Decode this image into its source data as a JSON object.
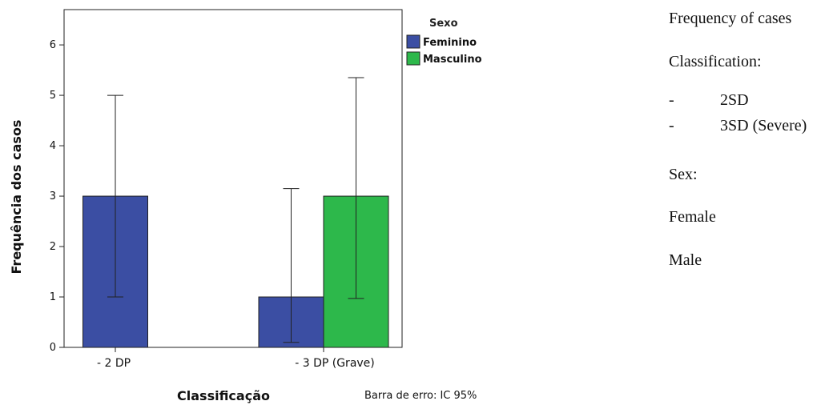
{
  "chart_data": {
    "type": "bar",
    "categories": [
      "- 2 DP",
      "- 3 DP (Grave)"
    ],
    "series": [
      {
        "name": "Feminino",
        "color": "#3b4ea3",
        "values": [
          3,
          1
        ],
        "ci_low": [
          1,
          0.1
        ],
        "ci_high": [
          5,
          3.15
        ]
      },
      {
        "name": "Masculino",
        "color": "#2db84b",
        "values": [
          null,
          3
        ],
        "ci_low": [
          null,
          0.97
        ],
        "ci_high": [
          null,
          5.35
        ]
      }
    ],
    "ylabel": "Frequência dos casos",
    "xlabel": "Classificação",
    "ylim": [
      0,
      6.7
    ],
    "yticks": [
      0,
      1,
      2,
      3,
      4,
      5,
      6
    ],
    "legend_title": "Sexo",
    "legend_position": "top-right",
    "error_bar_note": "Barra de erro: IC 95%",
    "grid": false
  },
  "translation": {
    "title": "Frequency of cases",
    "classification": "Classification:",
    "dash": "-",
    "classes": [
      "2SD",
      "3SD (Severe)"
    ],
    "sex": "Sex:",
    "female": "Female",
    "male": "Male"
  }
}
